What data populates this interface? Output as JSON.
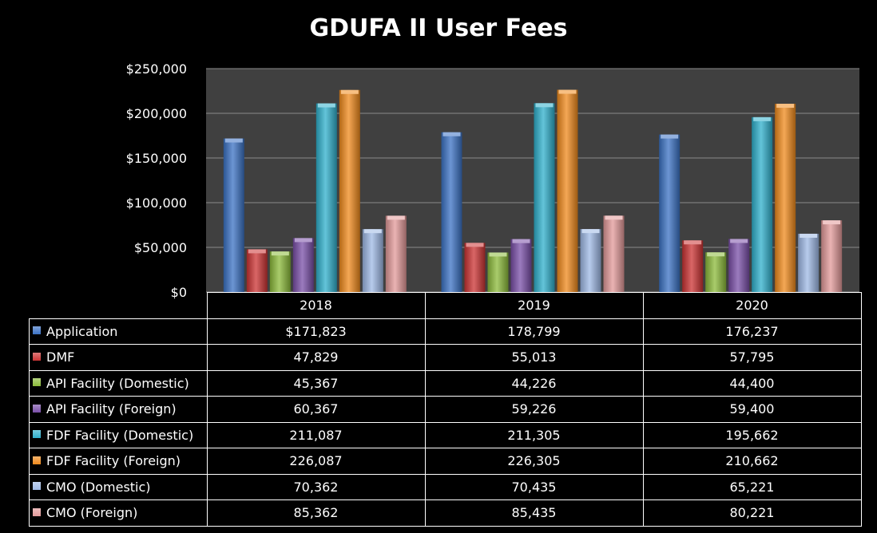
{
  "chart_data": {
    "type": "bar",
    "title": "GDUFA II User Fees",
    "categories": [
      "2018",
      "2019",
      "2020"
    ],
    "ylim": [
      0,
      250000
    ],
    "y_ticks": [
      0,
      50000,
      100000,
      150000,
      200000,
      250000
    ],
    "y_tick_labels": [
      "$0",
      "$50,000",
      "$100,000",
      "$150,000",
      "$200,000",
      "$250,000"
    ],
    "grid": true,
    "legend": "data-table",
    "series": [
      {
        "name": "Application",
        "color": "#3b72c4",
        "values": [
          171823,
          178799,
          176237
        ],
        "labels": [
          "$171,823",
          "178,799",
          "176,237"
        ]
      },
      {
        "name": "DMF",
        "color": "#cc3333",
        "values": [
          47829,
          55013,
          57795
        ],
        "labels": [
          "47,829",
          "55,013",
          "57,795"
        ]
      },
      {
        "name": "API Facility (Domestic)",
        "color": "#8cbb3a",
        "values": [
          45367,
          44226,
          44400
        ],
        "labels": [
          "45,367",
          "44,226",
          "44,400"
        ]
      },
      {
        "name": "API Facility (Foreign)",
        "color": "#7a4fa8",
        "values": [
          60367,
          59226,
          59400
        ],
        "labels": [
          "60,367",
          "59,226",
          "59,400"
        ]
      },
      {
        "name": "FDF Facility (Domestic)",
        "color": "#2fb0cc",
        "values": [
          211087,
          211305,
          195662
        ],
        "labels": [
          "211,087",
          "211,305",
          "195,662"
        ]
      },
      {
        "name": "FDF Facility (Foreign)",
        "color": "#f08a1c",
        "values": [
          226087,
          226305,
          210662
        ],
        "labels": [
          "226,087",
          "226,305",
          "210,662"
        ]
      },
      {
        "name": "CMO (Domestic)",
        "color": "#9fb9e6",
        "values": [
          70362,
          70435,
          65221
        ],
        "labels": [
          "70,362",
          "70,435",
          "65,221"
        ]
      },
      {
        "name": "CMO (Foreign)",
        "color": "#e39a9a",
        "values": [
          85362,
          85435,
          80221
        ],
        "labels": [
          "85,362",
          "85,435",
          "80,221"
        ]
      }
    ]
  }
}
